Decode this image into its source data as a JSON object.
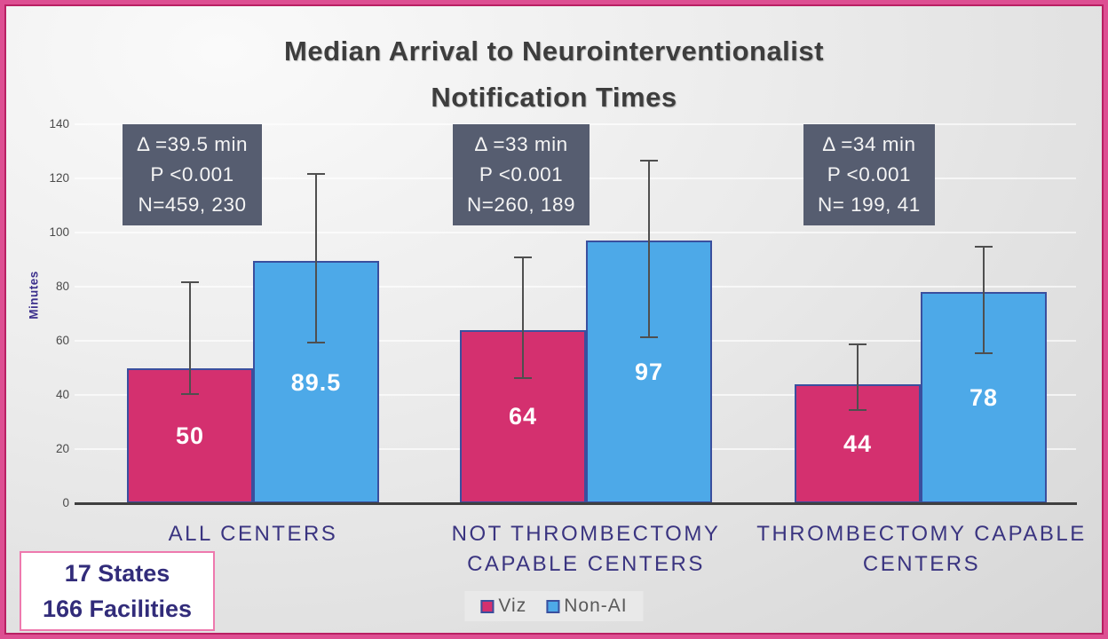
{
  "title": {
    "line1": "Median Arrival to Neurointerventionalist",
    "line2": "Notification Times"
  },
  "footnote": {
    "line1": "17 States",
    "line2": "166 Facilities"
  },
  "colors": {
    "viz": "#d4306f",
    "non_ai": "#4da9e8",
    "bar_border": "#3a4f9e",
    "annotation_bg": "#565d70",
    "category_text": "#3a3480",
    "title_text": "#3d3d3d",
    "error_bar": "#4f4f4f",
    "frame_border": "#dd4f92"
  },
  "chart_data": {
    "type": "bar",
    "title": "Median Arrival to Neurointerventionalist Notification Times",
    "categories": [
      "ALL CENTERS",
      "NOT THROMBECTOMY CAPABLE CENTERS",
      "THROMBECTOMY CAPABLE CENTERS"
    ],
    "series": [
      {
        "name": "Viz",
        "color": "#d4306f",
        "values": [
          50,
          64,
          44
        ],
        "error_low": [
          40,
          46,
          34
        ],
        "error_high": [
          82,
          91,
          59
        ]
      },
      {
        "name": "Non-AI",
        "color": "#4da9e8",
        "values": [
          89.5,
          97,
          78
        ],
        "error_low": [
          59,
          61,
          55
        ],
        "error_high": [
          122,
          127,
          95
        ]
      }
    ],
    "annotations": [
      {
        "delta": "Δ =39.5 min",
        "p": "P <0.001",
        "n": "N=459, 230"
      },
      {
        "delta": "Δ =33 min",
        "p": "P <0.001",
        "n": "N=260, 189"
      },
      {
        "delta": "Δ =34 min",
        "p": "P <0.001",
        "n": "N= 199, 41"
      }
    ],
    "xlabel": "",
    "ylabel": "Minutes",
    "ylim": [
      0,
      140
    ],
    "yticks": [
      0,
      20,
      40,
      60,
      80,
      100,
      120,
      140
    ],
    "grid": true,
    "legend_position": "bottom"
  }
}
